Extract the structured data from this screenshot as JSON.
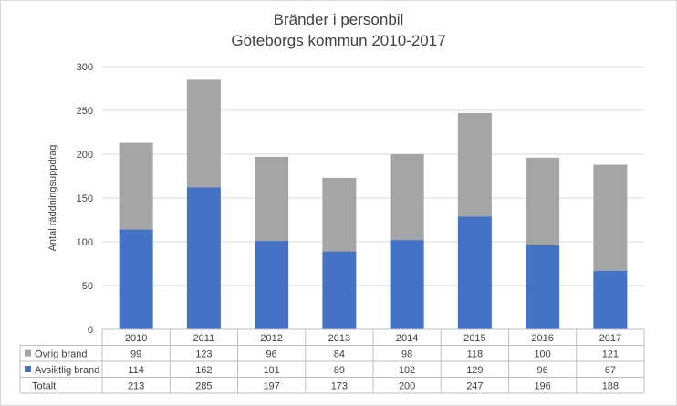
{
  "chart_data": {
    "type": "bar",
    "stacked": true,
    "title": "Bränder i personbil",
    "subtitle": "Göteborgs kommun 2010-2017",
    "ylabel": "Antal räddningsuppdrag",
    "xlabel": "",
    "ylim": [
      0,
      300
    ],
    "yticks": [
      0,
      50,
      100,
      150,
      200,
      250,
      300
    ],
    "grid": true,
    "categories": [
      "2010",
      "2011",
      "2012",
      "2013",
      "2014",
      "2015",
      "2016",
      "2017"
    ],
    "series": [
      {
        "name": "Avsiktlig brand",
        "color": "#4472c4",
        "values": [
          114,
          162,
          101,
          89,
          102,
          129,
          96,
          67
        ]
      },
      {
        "name": "Övrig brand",
        "color": "#a5a5a5",
        "values": [
          99,
          123,
          96,
          84,
          98,
          118,
          100,
          121
        ]
      }
    ],
    "data_table": {
      "rows": [
        {
          "label": "Övrig brand",
          "legend_color": "#a5a5a5",
          "values": [
            99,
            123,
            96,
            84,
            98,
            118,
            100,
            121
          ]
        },
        {
          "label": "Avsiktlig brand",
          "legend_color": "#4472c4",
          "values": [
            114,
            162,
            101,
            89,
            102,
            129,
            96,
            67
          ]
        },
        {
          "label": "Totalt",
          "legend_color": "",
          "values": [
            213,
            285,
            197,
            173,
            200,
            247,
            196,
            188
          ]
        }
      ]
    }
  }
}
